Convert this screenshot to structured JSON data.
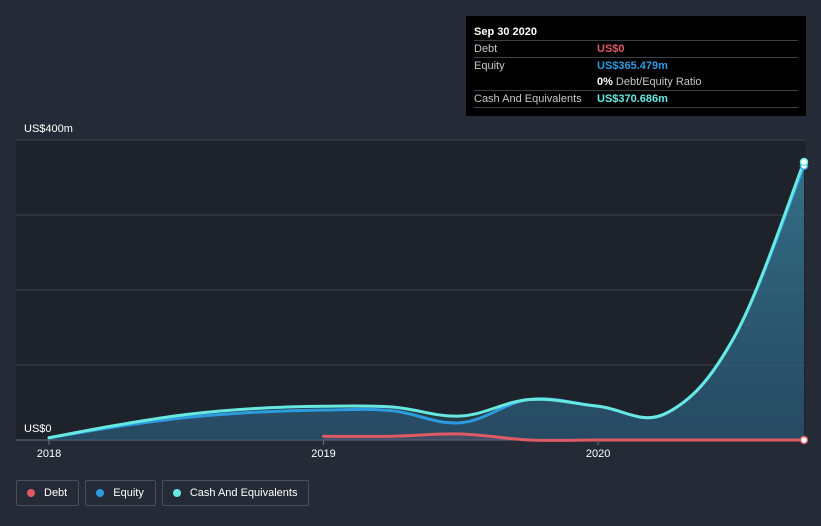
{
  "tooltip": {
    "date": "Sep 30 2020",
    "debt_label": "Debt",
    "debt_value": "US$0",
    "equity_label": "Equity",
    "equity_value": "US$365.479m",
    "ratio_value": "0%",
    "ratio_label": "Debt/Equity Ratio",
    "cash_label": "Cash And Equivalents",
    "cash_value": "US$370.686m"
  },
  "legend": [
    {
      "label": "Debt",
      "color": "#e05a66"
    },
    {
      "label": "Equity",
      "color": "#2d9be0"
    },
    {
      "label": "Cash And Equivalents",
      "color": "#67e8e0"
    }
  ],
  "chart_data": {
    "type": "area",
    "ylabel_top": "US$400m",
    "ylabel_bottom": "US$0",
    "ylim": [
      0,
      400
    ],
    "xlim": [
      2018,
      2020.75
    ],
    "x_ticks": [
      {
        "value": 2018,
        "label": "2018"
      },
      {
        "value": 2019,
        "label": "2019"
      },
      {
        "value": 2020,
        "label": "2020"
      }
    ],
    "grid": true,
    "series": [
      {
        "name": "Debt",
        "color": "#e05a66",
        "points": [
          [
            2019.0,
            5
          ],
          [
            2019.25,
            5
          ],
          [
            2019.5,
            8
          ],
          [
            2019.75,
            0
          ],
          [
            2020.0,
            0
          ],
          [
            2020.25,
            0
          ],
          [
            2020.5,
            0
          ],
          [
            2020.75,
            0
          ]
        ]
      },
      {
        "name": "Equity",
        "color": "#2d9be0",
        "points": [
          [
            2018.0,
            3
          ],
          [
            2018.25,
            18
          ],
          [
            2018.5,
            30
          ],
          [
            2018.75,
            37
          ],
          [
            2019.0,
            40
          ],
          [
            2019.25,
            39
          ],
          [
            2019.5,
            23
          ],
          [
            2019.75,
            54
          ],
          [
            2020.0,
            45
          ],
          [
            2020.25,
            36
          ],
          [
            2020.5,
            140
          ],
          [
            2020.75,
            365.479
          ]
        ]
      },
      {
        "name": "Cash And Equivalents",
        "color": "#67e8e0",
        "points": [
          [
            2018.0,
            3
          ],
          [
            2018.25,
            20
          ],
          [
            2018.5,
            34
          ],
          [
            2018.75,
            42
          ],
          [
            2019.0,
            45
          ],
          [
            2019.25,
            44
          ],
          [
            2019.5,
            32
          ],
          [
            2019.75,
            54
          ],
          [
            2020.0,
            45
          ],
          [
            2020.25,
            36
          ],
          [
            2020.5,
            140
          ],
          [
            2020.75,
            370.686
          ]
        ]
      }
    ]
  }
}
